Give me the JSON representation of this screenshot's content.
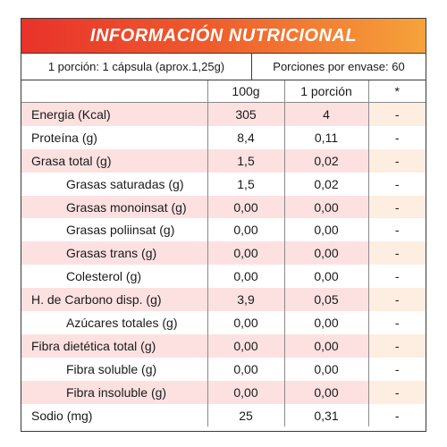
{
  "header": {
    "title": "INFORMACIÓN NUTRICIONAL"
  },
  "serving": {
    "per_portion": "1 porción: 1 cápsula (aprox.1,25g)",
    "portions_per_container": "Porciones por envase: 60"
  },
  "columns": [
    "",
    "100g",
    "1 porción",
    "*"
  ],
  "rows": [
    {
      "name": "Energia (Kcal)",
      "g100": "305",
      "portion": "4",
      "pct": "-",
      "indent": false
    },
    {
      "name": "Proteína (g)",
      "g100": "8,4",
      "portion": "0,11",
      "pct": "-",
      "indent": false
    },
    {
      "name": "Grasa total (g)",
      "g100": "1,5",
      "portion": "0,02",
      "pct": "-",
      "indent": false
    },
    {
      "name": "Grasas saturadas (g)",
      "g100": "1,5",
      "portion": "0,02",
      "pct": "-",
      "indent": true
    },
    {
      "name": "Grasas monoinsat (g)",
      "g100": "0,00",
      "portion": "0,00",
      "pct": "-",
      "indent": true
    },
    {
      "name": "Grasas poliinsat (g)",
      "g100": "0,00",
      "portion": "0,00",
      "pct": "-",
      "indent": true
    },
    {
      "name": "Grasas trans (g)",
      "g100": "0,00",
      "portion": "0,00",
      "pct": "-",
      "indent": true
    },
    {
      "name": "Colesterol (g)",
      "g100": "0,00",
      "portion": "0,00",
      "pct": "-",
      "indent": true
    },
    {
      "name": "H. de Carbono disp. (g)",
      "g100": "3,9",
      "portion": "0,05",
      "pct": "-",
      "indent": false
    },
    {
      "name": "Azúcares totales (g)",
      "g100": "0,00",
      "portion": "0,00",
      "pct": "-",
      "indent": true
    },
    {
      "name": "Fibra dietética total (g)",
      "g100": "0,00",
      "portion": "0,00",
      "pct": "-",
      "indent": false
    },
    {
      "name": "Fibra soluble (g)",
      "g100": "0,00",
      "portion": "0,00",
      "pct": "-",
      "indent": true
    },
    {
      "name": "Fibra insoluble (g)",
      "g100": "0,00",
      "portion": "0,00",
      "pct": "-",
      "indent": true
    },
    {
      "name": "Sodio (mg)",
      "g100": "25",
      "portion": "0,31",
      "pct": "-",
      "indent": false
    }
  ],
  "colors": {
    "banner_start": "#e8332b",
    "banner_end": "#f6a33a",
    "row_shade": "#fde1e1"
  }
}
